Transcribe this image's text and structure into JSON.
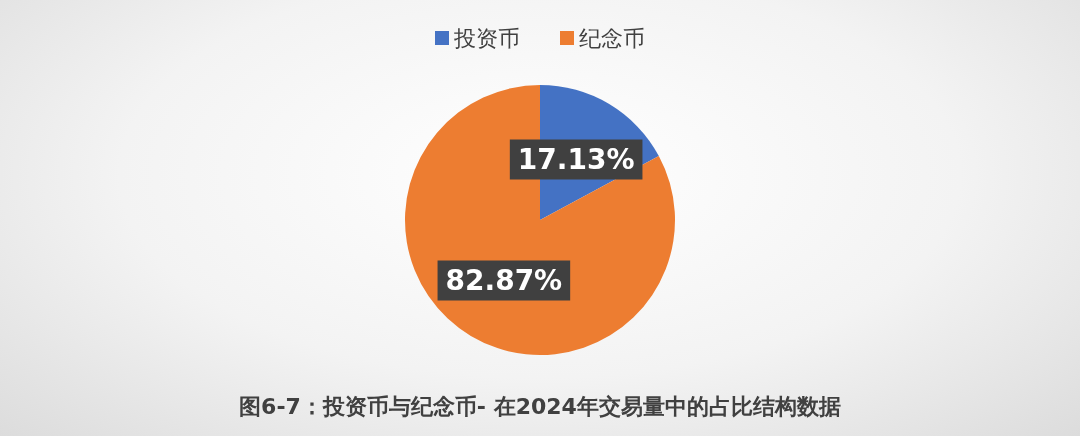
{
  "chart_data": {
    "type": "pie",
    "title": "图6-7：投资币与纪念币- 在2024年交易量中的占比结构数据",
    "categories": [
      "投资币",
      "纪念币"
    ],
    "values": [
      17.13,
      82.87
    ],
    "colors": [
      "#4472c4",
      "#ed7d31"
    ],
    "value_labels": [
      "17.13%",
      "82.87%"
    ],
    "legend": "top"
  }
}
